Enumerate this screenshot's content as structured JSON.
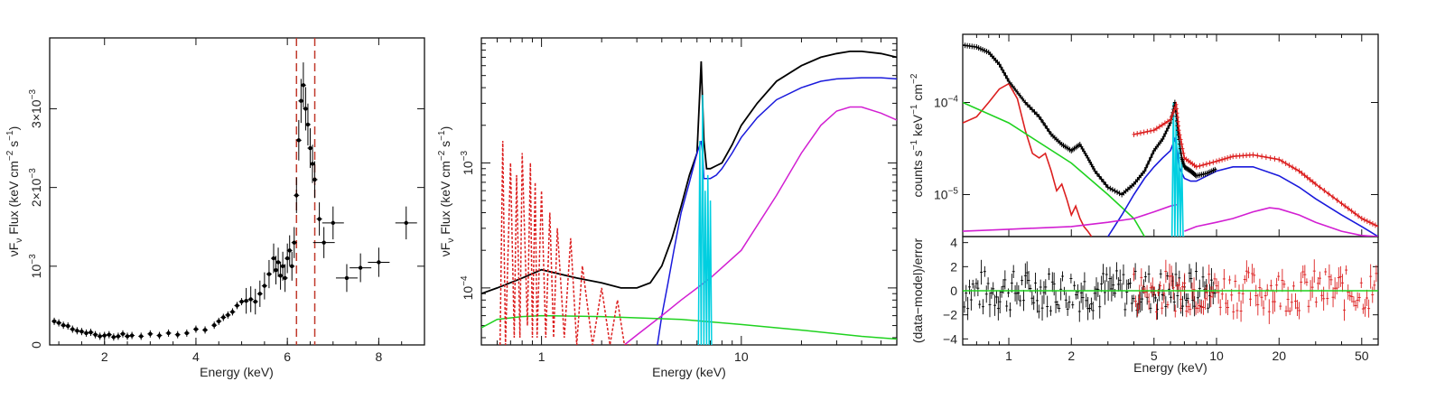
{
  "chart_data": [
    {
      "type": "scatter",
      "xlabel": "Energy (keV)",
      "ylabel": "νF",
      "ylabel_sub": "ν",
      "ylabel_rest": " Flux (keV cm",
      "ylabel_sup1": "−2",
      "ylabel_mid": " s",
      "ylabel_sup2": "−1",
      "ylabel_end": ")",
      "xlim": [
        0.8,
        9.0
      ],
      "ylim": [
        0.0,
        0.0039
      ],
      "x_tick_labels": [
        "2",
        "4",
        "6",
        "8"
      ],
      "x_ticks": [
        2,
        4,
        6,
        8
      ],
      "y_ticks": [
        0,
        0.001,
        0.002,
        0.003
      ],
      "y_tick_labels": [
        {
          "mant": "0",
          "exp": ""
        },
        {
          "mant": "10",
          "exp": "−3"
        },
        {
          "mant": "2×10",
          "exp": "−3"
        },
        {
          "mant": "3×10",
          "exp": "−3"
        }
      ],
      "vlines": [
        6.2,
        6.6
      ],
      "vline_color": "#c0392b",
      "point_color": "#000000",
      "points": [
        [
          0.9,
          0.0003
        ],
        [
          1.0,
          0.00028
        ],
        [
          1.1,
          0.00025
        ],
        [
          1.2,
          0.00024
        ],
        [
          1.3,
          0.0002
        ],
        [
          1.4,
          0.00018
        ],
        [
          1.5,
          0.00017
        ],
        [
          1.6,
          0.00015
        ],
        [
          1.7,
          0.00016
        ],
        [
          1.8,
          0.00013
        ],
        [
          1.9,
          0.00011
        ],
        [
          2.0,
          0.00012
        ],
        [
          2.1,
          0.00013
        ],
        [
          2.2,
          0.0001
        ],
        [
          2.3,
          0.00011
        ],
        [
          2.4,
          0.00014
        ],
        [
          2.5,
          0.00011
        ],
        [
          2.6,
          0.00012
        ],
        [
          2.8,
          0.00011
        ],
        [
          3.0,
          0.00014
        ],
        [
          3.2,
          0.00012
        ],
        [
          3.4,
          0.00015
        ],
        [
          3.6,
          0.00013
        ],
        [
          3.8,
          0.00015
        ],
        [
          4.0,
          0.0002
        ],
        [
          4.2,
          0.00019
        ],
        [
          4.4,
          0.00025
        ],
        [
          4.5,
          0.0003
        ],
        [
          4.6,
          0.00035
        ],
        [
          4.7,
          0.00038
        ],
        [
          4.8,
          0.00042
        ],
        [
          4.9,
          0.0005
        ],
        [
          5.0,
          0.00055
        ],
        [
          5.1,
          0.00056
        ],
        [
          5.2,
          0.00058
        ],
        [
          5.3,
          0.00055
        ],
        [
          5.4,
          0.00065
        ],
        [
          5.5,
          0.00075
        ],
        [
          5.6,
          0.0009
        ],
        [
          5.7,
          0.0011
        ],
        [
          5.75,
          0.00095
        ],
        [
          5.8,
          0.00105
        ],
        [
          5.85,
          0.00088
        ],
        [
          5.9,
          0.001
        ],
        [
          5.95,
          0.00085
        ],
        [
          6.0,
          0.0011
        ],
        [
          6.05,
          0.0012
        ],
        [
          6.1,
          0.001
        ],
        [
          6.15,
          0.0013
        ],
        [
          6.2,
          0.0019
        ],
        [
          6.25,
          0.0026
        ],
        [
          6.3,
          0.0031
        ],
        [
          6.35,
          0.0033
        ],
        [
          6.4,
          0.003
        ],
        [
          6.45,
          0.0028
        ],
        [
          6.5,
          0.0025
        ],
        [
          6.55,
          0.0023
        ],
        [
          6.6,
          0.0021
        ],
        [
          6.7,
          0.0016
        ],
        [
          6.8,
          0.0013
        ],
        [
          7.0,
          0.00155
        ],
        [
          7.3,
          0.00085
        ],
        [
          7.6,
          0.00098
        ],
        [
          8.0,
          0.00105
        ],
        [
          8.6,
          0.00155
        ]
      ]
    },
    {
      "type": "line",
      "xlabel": "Energy (keV)",
      "ylabel": "νF",
      "ylabel_sub": "ν",
      "ylabel_rest": " Flux (keV cm",
      "ylabel_sup1": "−2",
      "ylabel_mid": " s",
      "ylabel_sup2": "−1",
      "ylabel_end": ")",
      "x_scale": "log",
      "y_scale": "log",
      "xlim": [
        0.5,
        60
      ],
      "ylim": [
        3.5e-05,
        0.01
      ],
      "x_tick_labels": [
        "1",
        "10"
      ],
      "x_ticks": [
        1,
        10
      ],
      "y_tick_labels": [
        {
          "mant": "10",
          "exp": "−4"
        },
        {
          "mant": "10",
          "exp": "−3"
        }
      ],
      "y_ticks": [
        0.0001,
        0.001
      ],
      "series": [
        {
          "color": "#000000",
          "style": "solid",
          "x": [
            0.5,
            0.6,
            0.8,
            1.0,
            1.5,
            2.0,
            2.5,
            3.0,
            3.5,
            4.0,
            4.5,
            5.0,
            5.5,
            6.0,
            6.3,
            6.4,
            6.5,
            6.7,
            7.0,
            7.5,
            8.0,
            9.0,
            10,
            12,
            15,
            20,
            25,
            30,
            35,
            40,
            50,
            60
          ],
          "y": [
            9e-05,
            0.0001,
            0.00012,
            0.00014,
            0.00012,
            0.00011,
            0.0001,
            0.0001,
            0.00011,
            0.00015,
            0.00025,
            0.00045,
            0.0008,
            0.0012,
            0.0065,
            0.003,
            0.0015,
            0.0009,
            0.0009,
            0.00095,
            0.001,
            0.0014,
            0.002,
            0.003,
            0.0045,
            0.006,
            0.007,
            0.0075,
            0.0078,
            0.0078,
            0.0075,
            0.007
          ]
        },
        {
          "color": "#1a1adc",
          "style": "solid",
          "x": [
            3.8,
            4.0,
            4.3,
            4.6,
            5.0,
            5.5,
            6.0,
            6.3,
            6.4,
            6.5,
            7.0,
            7.5,
            8.0,
            9.0,
            10,
            12,
            15,
            20,
            25,
            30,
            40,
            50,
            60
          ],
          "y": [
            3.5e-05,
            6e-05,
            0.00011,
            0.0002,
            0.0004,
            0.0007,
            0.0012,
            0.0015,
            0.0012,
            0.00075,
            0.00075,
            0.0008,
            0.0009,
            0.0012,
            0.0016,
            0.0023,
            0.0032,
            0.004,
            0.0045,
            0.0047,
            0.0048,
            0.0048,
            0.0047
          ]
        },
        {
          "color": "#d21fd2",
          "style": "solid",
          "x": [
            2.6,
            3.0,
            4.0,
            5.0,
            7.0,
            10,
            15,
            20,
            25,
            30,
            35,
            40,
            50,
            60
          ],
          "y": [
            3.5e-05,
            4.2e-05,
            6e-05,
            8e-05,
            0.00012,
            0.0002,
            0.00055,
            0.0012,
            0.002,
            0.0026,
            0.0028,
            0.0028,
            0.0025,
            0.0022
          ]
        },
        {
          "color": "#1fd21f",
          "style": "solid",
          "x": [
            0.5,
            0.55,
            0.6,
            0.8,
            1.0,
            2.0,
            5.0,
            10,
            20,
            40,
            60
          ],
          "y": [
            4.8e-05,
            5.2e-05,
            5.6e-05,
            5.9e-05,
            6e-05,
            5.9e-05,
            5.6e-05,
            5.1e-05,
            4.6e-05,
            4.1e-05,
            3.9e-05
          ]
        },
        {
          "color": "#00cfe0",
          "style": "solid",
          "x": [
            6.1,
            6.2,
            6.3,
            6.4,
            6.5,
            6.6,
            6.7,
            6.8,
            6.9,
            7.0,
            7.1
          ],
          "y": [
            3.5e-05,
            0.0015,
            3.5e-05,
            0.0035,
            3.5e-05,
            0.0006,
            3.5e-05,
            0.0008,
            3.5e-05,
            0.0005,
            3.5e-05
          ]
        },
        {
          "color": "#dc1f1f",
          "style": "dotted",
          "x": [
            0.62,
            0.64,
            0.66,
            0.7,
            0.73,
            0.75,
            0.78,
            0.8,
            0.85,
            0.88,
            0.9,
            0.93,
            0.95,
            1.0,
            1.05,
            1.1,
            1.15,
            1.2,
            1.3,
            1.4,
            1.5,
            1.6,
            1.8,
            2.0,
            2.2,
            2.4,
            2.6,
            2.8
          ],
          "y": [
            3.5e-05,
            0.0015,
            3.5e-05,
            0.001,
            4e-05,
            0.0008,
            4e-05,
            0.0012,
            5e-05,
            0.001,
            4e-05,
            0.0007,
            4e-05,
            0.0006,
            4e-05,
            0.0004,
            4e-05,
            0.0003,
            4e-05,
            0.00025,
            3.5e-05,
            0.00015,
            3.5e-05,
            0.0001,
            3.5e-05,
            8e-05,
            3.5e-05,
            3.5e-05
          ]
        }
      ]
    },
    {
      "type": "line",
      "xlabel": "Energy (keV)",
      "ylabel_top": "counts s",
      "ylabel_top_sup1": "−1",
      "ylabel_top_mid": " keV",
      "ylabel_top_sup2": "−1",
      "ylabel_top_end": " cm",
      "ylabel_top_sup3": "−2",
      "ylabel_bottom": "(data−model)/error",
      "x_scale": "log",
      "xlim": [
        0.6,
        60
      ],
      "top": {
        "y_scale": "log",
        "ylim": [
          3.5e-06,
          0.00055
        ],
        "y_ticks": [
          1e-05,
          0.0001
        ],
        "y_tick_labels": [
          {
            "mant": "10",
            "exp": "−5"
          },
          {
            "mant": "10",
            "exp": "−4"
          }
        ],
        "series": [
          {
            "color": "#000000",
            "x": [
              0.6,
              0.7,
              0.8,
              0.9,
              1.0,
              1.2,
              1.4,
              1.6,
              1.8,
              2.0,
              2.2,
              2.4,
              2.6,
              3.0,
              3.5,
              4.0,
              4.5,
              5.0,
              5.5,
              6.0,
              6.3,
              6.5,
              6.8,
              7.0,
              7.5,
              8.0,
              9.0,
              10
            ],
            "y": [
              0.00042,
              0.0004,
              0.00035,
              0.00026,
              0.00017,
              0.0001,
              7e-05,
              4.5e-05,
              3.5e-05,
              3e-05,
              3.5e-05,
              2.5e-05,
              1.8e-05,
              1.2e-05,
              1e-05,
              1.3e-05,
              1.8e-05,
              3e-05,
              4e-05,
              6e-05,
              0.0001,
              5e-05,
              2.5e-05,
              2e-05,
              1.8e-05,
              1.6e-05,
              1.7e-05,
              1.9e-05
            ]
          },
          {
            "color": "#dc1f1f",
            "x": [
              0.6,
              0.7,
              0.8,
              0.9,
              1.0,
              1.1,
              1.2,
              1.3,
              1.4,
              1.5,
              1.6,
              1.7,
              1.8,
              1.9,
              2.0,
              2.1,
              2.2,
              2.3,
              2.4,
              2.5
            ],
            "y": [
              6e-05,
              7e-05,
              0.0001,
              0.00014,
              0.00016,
              0.00011,
              5e-05,
              2.8e-05,
              2.5e-05,
              2.8e-05,
              1.8e-05,
              1.1e-05,
              1.3e-05,
              9e-06,
              6e-06,
              7.5e-06,
              5.5e-06,
              4.5e-06,
              4e-06,
              3.5e-06
            ]
          },
          {
            "color": "#dc1f1f",
            "x": [
              4.0,
              5.0,
              6.0,
              6.4,
              6.6,
              7.0,
              8.0,
              10,
              12,
              15,
              20,
              25,
              30,
              40,
              50,
              60
            ],
            "y": [
              4.5e-05,
              5e-05,
              6.5e-05,
              9.5e-05,
              5e-05,
              2.5e-05,
              2e-05,
              2.3e-05,
              2.6e-05,
              2.7e-05,
              2.4e-05,
              1.8e-05,
              1.3e-05,
              8e-06,
              5.5e-06,
              4.5e-06
            ]
          },
          {
            "color": "#1fd21f",
            "x": [
              0.6,
              1.0,
              2.0,
              3.0,
              4.0,
              4.5
            ],
            "y": [
              0.0001,
              6e-05,
              2.2e-05,
              1e-05,
              5.5e-06,
              3.5e-06
            ]
          },
          {
            "color": "#1a1adc",
            "x": [
              3.0,
              3.5,
              4.0,
              4.5,
              5.0,
              5.5,
              6.0,
              6.3,
              6.4,
              6.6,
              7.0,
              7.5,
              8.0,
              9.0,
              10,
              12,
              15,
              20,
              25,
              30,
              40,
              50,
              60
            ],
            "y": [
              3.5e-06,
              6e-06,
              1e-05,
              1.5e-05,
              2e-05,
              2.5e-05,
              3e-05,
              4e-05,
              3.5e-05,
              2e-05,
              1.5e-05,
              1.4e-05,
              1.4e-05,
              1.6e-05,
              1.8e-05,
              2e-05,
              2e-05,
              1.6e-05,
              1.2e-05,
              9e-06,
              6e-06,
              4.5e-06,
              3.5e-06
            ]
          },
          {
            "color": "#d21fd2",
            "x": [
              0.6,
              1.0,
              2.0,
              3.0,
              4.0,
              5.0,
              6.0,
              6.5
            ],
            "y": [
              4e-06,
              4.2e-06,
              4.5e-06,
              5e-06,
              5.5e-06,
              6.5e-06,
              7.5e-06,
              7.8e-06
            ]
          },
          {
            "color": "#d21fd2",
            "x": [
              7.0,
              8.0,
              10,
              12,
              15,
              18,
              20,
              25,
              30,
              40,
              50,
              60
            ],
            "y": [
              4e-06,
              4.5e-06,
              5e-06,
              5.5e-06,
              6.5e-06,
              7.2e-06,
              7e-06,
              6e-06,
              5e-06,
              4e-06,
              3.6e-06,
              3.5e-06
            ]
          },
          {
            "color": "#00cfe0",
            "x": [
              6.1,
              6.2,
              6.3,
              6.4,
              6.5,
              6.6,
              6.7,
              6.8,
              6.9,
              7.0
            ],
            "y": [
              3.5e-06,
              0.0001,
              3.5e-06,
              9e-05,
              3.5e-06,
              4e-05,
              3.5e-06,
              2.5e-05,
              3.5e-06,
              3.5e-06
            ]
          }
        ]
      },
      "bottom": {
        "ylim": [
          -4.5,
          4.5
        ],
        "y_ticks": [
          -4,
          -2,
          0,
          2,
          4
        ],
        "y_tick_labels": [
          "−4",
          "−2",
          "0",
          "2",
          "4"
        ],
        "zero_line_color": "#1fd21f",
        "residual_colors": [
          "#000000",
          "#dc1f1f"
        ]
      },
      "x_ticks": [
        1,
        2,
        5,
        10,
        20,
        50
      ],
      "x_tick_labels": [
        "1",
        "2",
        "5",
        "10",
        "20",
        "50"
      ]
    }
  ]
}
